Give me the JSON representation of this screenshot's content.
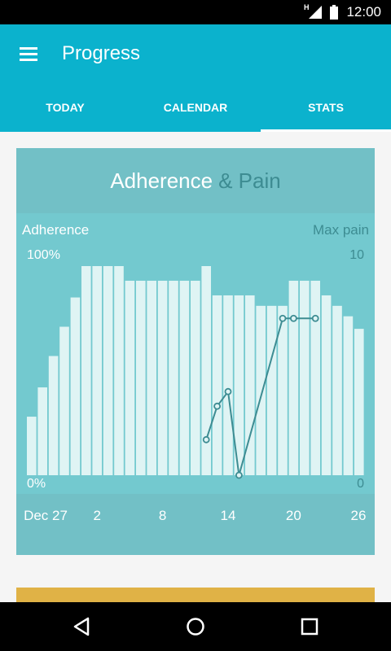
{
  "status_bar": {
    "time": "12:00",
    "signal_label": "H",
    "icons": [
      "signal-icon",
      "battery-icon"
    ]
  },
  "app_bar": {
    "title": "Progress",
    "menu_icon": "hamburger-menu-icon"
  },
  "tabs": [
    {
      "label": "TODAY",
      "active": false
    },
    {
      "label": "CALENDAR",
      "active": false
    },
    {
      "label": "STATS",
      "active": true
    }
  ],
  "card": {
    "title_part1": "Adherence",
    "title_part2": "& Pain"
  },
  "colors": {
    "app_bar": "#0bb2cd",
    "card_bg": "#73c9cf",
    "card_header_bg": "#72c0c6",
    "bar_fill": "#dff4f4",
    "pain_line": "#3d8c92",
    "second_card": "#e0b246"
  },
  "chart_data": {
    "type": "bar",
    "left_axis_label": "Adherence",
    "right_axis_label": "Max pain",
    "left_ticks": [
      "100%",
      "0%"
    ],
    "right_ticks": [
      "10",
      "0"
    ],
    "ylim_adherence": [
      0,
      100
    ],
    "ylim_pain": [
      0,
      10
    ],
    "x_tick_labels": [
      {
        "label": "Dec 27",
        "day_index": 0
      },
      {
        "label": "2",
        "day_index": 6
      },
      {
        "label": "8",
        "day_index": 12
      },
      {
        "label": "14",
        "day_index": 18
      },
      {
        "label": "20",
        "day_index": 24
      },
      {
        "label": "26",
        "day_index": 30
      }
    ],
    "series": [
      {
        "name": "Adherence",
        "kind": "bar",
        "values": [
          28,
          42,
          57,
          71,
          85,
          100,
          100,
          100,
          100,
          93,
          93,
          93,
          93,
          93,
          93,
          93,
          100,
          86,
          86,
          86,
          86,
          81,
          81,
          81,
          93,
          93,
          93,
          86,
          81,
          76,
          70
        ]
      },
      {
        "name": "Max pain",
        "kind": "line",
        "points": [
          {
            "day_index": 16,
            "value": 1.7
          },
          {
            "day_index": 17,
            "value": 3.3
          },
          {
            "day_index": 18,
            "value": 4.0
          },
          {
            "day_index": 19,
            "value": 0.0
          },
          {
            "day_index": 23,
            "value": 7.5
          },
          {
            "day_index": 24,
            "value": 7.5
          },
          {
            "day_index": 26,
            "value": 7.5
          }
        ]
      }
    ]
  }
}
